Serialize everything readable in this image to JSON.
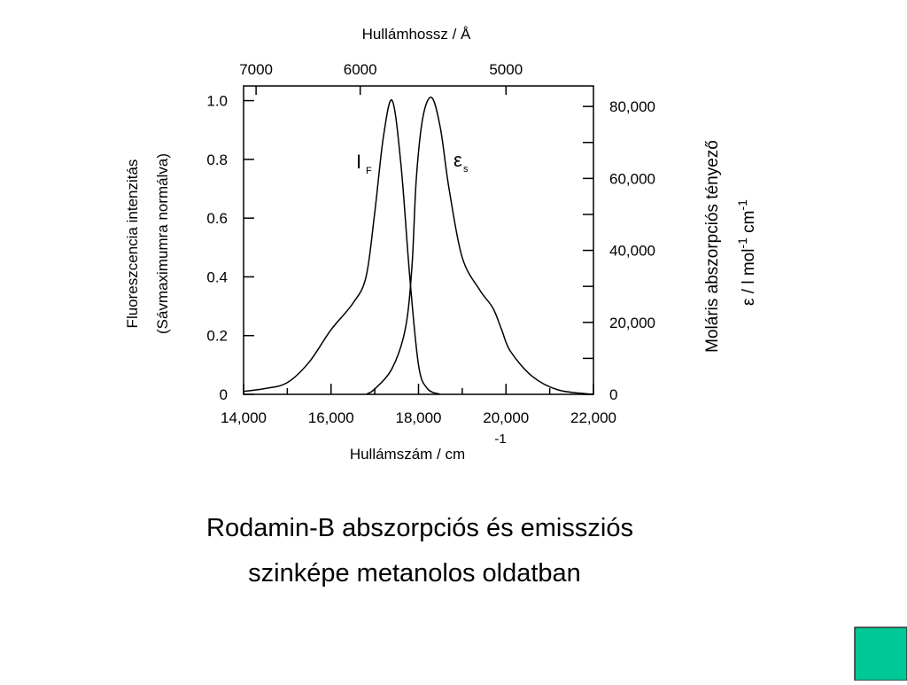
{
  "chart_data": {
    "type": "line",
    "x_label": {
      "text": "Hullámszám / cm",
      "sup": "-1"
    },
    "x2_label": "Hullámhossz /  Å",
    "y_label": [
      "Fluoreszcencia intenzitás",
      "(Sávmaximumra normálva)"
    ],
    "y2_label": {
      "line1": "Moláris abszorpciós tényező",
      "line2": [
        {
          "text": "ε / l mol"
        },
        {
          "text": "-1",
          "sup": true
        },
        {
          "text": " cm"
        },
        {
          "text": "-1",
          "sup": true
        }
      ]
    },
    "xlim": [
      14000,
      22000
    ],
    "xticks": [
      {
        "value": 14000,
        "label": "14,000"
      },
      {
        "value": 16000,
        "label": "16,000"
      },
      {
        "value": 18000,
        "label": "18,000"
      },
      {
        "value": 20000,
        "label": "20,000"
      },
      {
        "value": 22000,
        "label": "22,000"
      }
    ],
    "xminorticks": [
      15000,
      17000,
      19000,
      21000
    ],
    "x2scale": "reciprocal",
    "x2ticks": [
      7000,
      6000,
      5000
    ],
    "ylim": [
      0,
      1.05
    ],
    "yticks": [
      0,
      0.2,
      0.4,
      0.6,
      0.8,
      {
        "value": 1,
        "label": "1.0"
      }
    ],
    "y2lim": [
      0,
      85700
    ],
    "y2ticks": [
      0,
      {
        "value": 20000,
        "label": "20,000"
      },
      {
        "value": 40000,
        "label": "40,000"
      },
      {
        "value": 60000,
        "label": "60,000"
      },
      {
        "value": 80000,
        "label": "80,000"
      }
    ],
    "y2minorticks": [
      10000,
      30000,
      50000,
      70000
    ],
    "series": [
      {
        "name": "I",
        "sub": "F",
        "color": "#000000",
        "x": [
          14000,
          14500,
          15000,
          15500,
          16000,
          16500,
          16800,
          17000,
          17200,
          17400,
          17600,
          17800,
          18000,
          18200,
          18500
        ],
        "values": [
          0.01,
          0.02,
          0.04,
          0.11,
          0.22,
          0.31,
          0.4,
          0.62,
          0.88,
          1.0,
          0.78,
          0.4,
          0.1,
          0.02,
          0.0
        ]
      },
      {
        "name": "ε",
        "sub": "s",
        "color": "#000000",
        "axis": "y2",
        "x": [
          16800,
          17000,
          17400,
          17700,
          17850,
          17950,
          18100,
          18300,
          18500,
          18700,
          19000,
          19400,
          19700,
          19900,
          20100,
          20600,
          21200,
          22000
        ],
        "values": [
          0,
          1500,
          7300,
          18300,
          35500,
          60000,
          77000,
          82500,
          74000,
          57000,
          38000,
          29000,
          24000,
          18000,
          12000,
          5000,
          1200,
          0
        ]
      }
    ]
  },
  "caption": [
    "Rodamin-B abszorpciós és emissziós",
    "szinképe metanolos oldatban"
  ]
}
